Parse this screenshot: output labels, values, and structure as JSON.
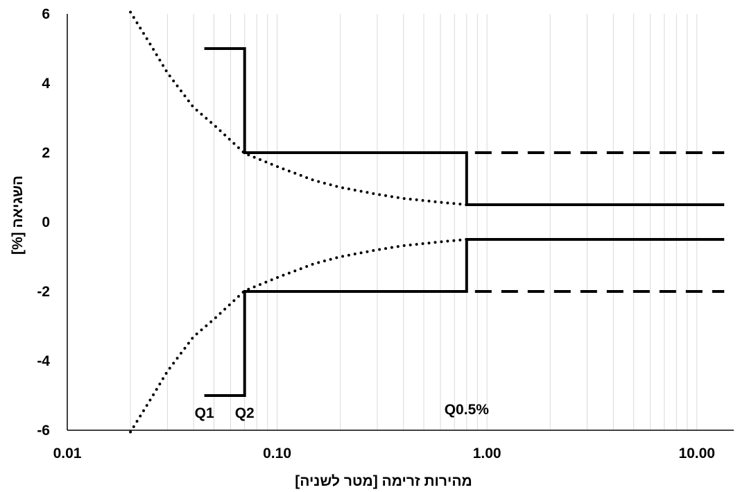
{
  "chart_data": {
    "type": "line",
    "title": "",
    "xlabel": "מהירות זרימה [מטר לשניה]",
    "ylabel": "השגיאה [%]",
    "x_scale": "log",
    "xlim": [
      0.01,
      15
    ],
    "ylim": [
      -6,
      6
    ],
    "grid": "vertical log gridlines",
    "x_tick_labels": [
      "0.01",
      "0.10",
      "1.00",
      "10.00"
    ],
    "y_tick_labels": [
      "6",
      "4",
      "2",
      "0",
      "-2",
      "-4",
      "-6"
    ],
    "line_color": "#000000",
    "series": [
      {
        "style": "solid",
        "x": [
          0.045,
          0.07,
          0.07,
          0.8,
          0.8,
          13.5
        ],
        "y": [
          5,
          5,
          2,
          2,
          0.5,
          0.5
        ]
      },
      {
        "style": "solid",
        "x": [
          0.045,
          0.07,
          0.07,
          0.8,
          0.8,
          13.5
        ],
        "y": [
          -5,
          -5,
          -2,
          -2,
          -0.5,
          -0.5
        ]
      },
      {
        "style": "dashed",
        "x": [
          0.8,
          13.5
        ],
        "y": [
          2,
          2
        ]
      },
      {
        "style": "dashed",
        "x": [
          0.8,
          13.5
        ],
        "y": [
          -2,
          -2
        ]
      },
      {
        "style": "dotted",
        "x": [
          0.02,
          0.025,
          0.03,
          0.04,
          0.05,
          0.07,
          0.1,
          0.15,
          0.2,
          0.3,
          0.4,
          0.5,
          0.6,
          0.8
        ],
        "y": [
          6.05,
          5.1,
          4.3,
          3.3,
          2.8,
          1.98,
          1.6,
          1.2,
          1.0,
          0.8,
          0.68,
          0.62,
          0.57,
          0.5
        ]
      },
      {
        "style": "dotted",
        "x": [
          0.02,
          0.025,
          0.03,
          0.04,
          0.05,
          0.07,
          0.1,
          0.15,
          0.2,
          0.3,
          0.4,
          0.5,
          0.6,
          0.8
        ],
        "y": [
          -6.05,
          -5.1,
          -4.3,
          -3.3,
          -2.8,
          -1.98,
          -1.6,
          -1.2,
          -1.0,
          -0.8,
          -0.68,
          -0.62,
          -0.57,
          -0.5
        ]
      }
    ],
    "annotations": [
      {
        "text": "Q1",
        "x": 0.045,
        "y": -5.5
      },
      {
        "text": "Q2",
        "x": 0.07,
        "y": -5.5
      },
      {
        "text": "Q0.5%",
        "x": 0.8,
        "y": -5.4
      }
    ]
  }
}
